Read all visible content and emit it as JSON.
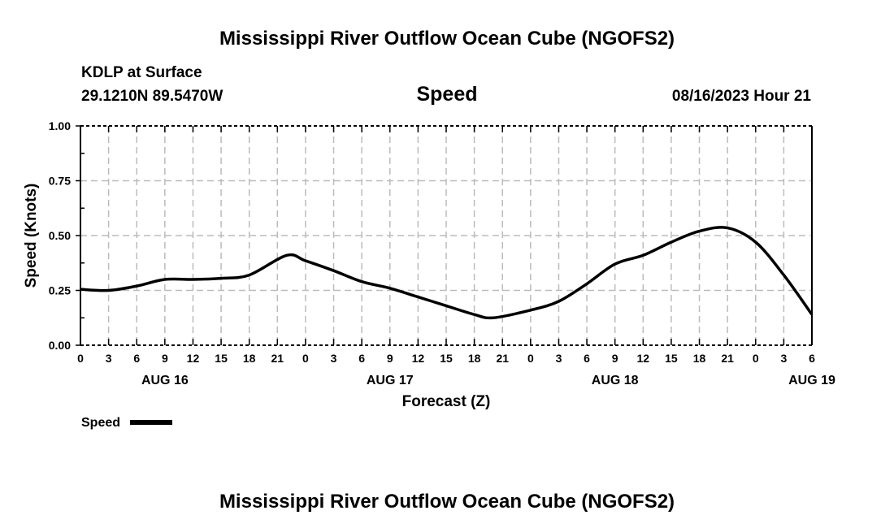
{
  "chart_data": {
    "type": "line",
    "title": "Mississippi River Outflow Ocean Cube (NGOFS2)",
    "subtitle": "Speed",
    "station": "KDLP at Surface",
    "location": "29.1210N  89.5470W",
    "timestamp": "08/16/2023 Hour 21",
    "xlabel": "Forecast (Z)",
    "ylabel": "Speed (Knots)",
    "ylim": [
      0,
      1
    ],
    "yticks": [
      "0.00",
      "0.25",
      "0.50",
      "0.75",
      "1.00"
    ],
    "xticks": [
      "0",
      "3",
      "6",
      "9",
      "12",
      "15",
      "18",
      "21",
      "0",
      "3",
      "6",
      "9",
      "12",
      "15",
      "18",
      "21",
      "0",
      "3",
      "6",
      "9",
      "12",
      "15",
      "18",
      "21",
      "0",
      "3",
      "6"
    ],
    "date_labels": [
      {
        "label": "AUG 16",
        "hour": 9
      },
      {
        "label": "AUG 17",
        "hour": 33
      },
      {
        "label": "AUG 18",
        "hour": 57
      },
      {
        "label": "AUG 19",
        "hour": 78
      }
    ],
    "xlim_hours": [
      0,
      78
    ],
    "grid": true,
    "legend": "bottom-left",
    "series": [
      {
        "name": "Speed",
        "color": "#000000",
        "x_hours": [
          0,
          3,
          6,
          9,
          12,
          15,
          18,
          22,
          24,
          27,
          30,
          33,
          36,
          39,
          42,
          44,
          48,
          51,
          54,
          57,
          60,
          63,
          66,
          69,
          72,
          75,
          78
        ],
        "values": [
          0.255,
          0.25,
          0.27,
          0.3,
          0.3,
          0.305,
          0.32,
          0.41,
          0.385,
          0.34,
          0.29,
          0.26,
          0.22,
          0.18,
          0.14,
          0.125,
          0.16,
          0.2,
          0.28,
          0.37,
          0.41,
          0.47,
          0.52,
          0.535,
          0.47,
          0.32,
          0.14
        ]
      }
    ]
  },
  "footer_title": "Mississippi River Outflow Ocean Cube (NGOFS2)"
}
